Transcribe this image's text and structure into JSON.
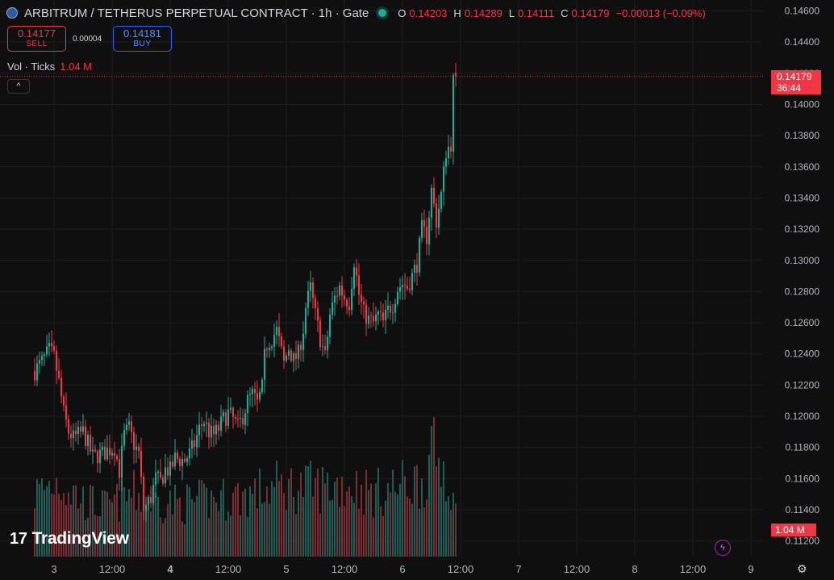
{
  "header": {
    "title": "ARBITRUM / TETHERUS PERPETUAL CONTRACT · 1h · Gate",
    "ohlc": [
      {
        "key": "O",
        "value": "0.14203"
      },
      {
        "key": "H",
        "value": "0.14289"
      },
      {
        "key": "L",
        "value": "0.14111"
      },
      {
        "key": "C",
        "value": "0.14179"
      }
    ],
    "change": "−0.00013 (−0.09%)"
  },
  "trade": {
    "sell_price": "0.14177",
    "sell_label": "SELL",
    "spread": "0.00004",
    "buy_price": "0.14181",
    "buy_label": "BUY"
  },
  "volume_legend": {
    "label": "Vol · Ticks",
    "value": "1.04 M"
  },
  "collapse_glyph": "^",
  "last_price_tag": {
    "price": "0.14179",
    "countdown": "36:44"
  },
  "volume_tag": "1.04 M",
  "branding": {
    "logo_mark": "17",
    "name": "TradingView"
  },
  "settings_icon_glyph": "⚙",
  "flash_icon_glyph": "ϟ",
  "colors": {
    "up": "#22ab94",
    "down": "#f23645",
    "up_vol": "#1f5c55",
    "down_vol": "#7a2c33",
    "grid": "#1e1e1e",
    "background": "#0f0f0f"
  },
  "chart_data": {
    "type": "candlestick",
    "interval": "1h",
    "y_axis": {
      "side": "right",
      "ylim": [
        0.111,
        0.1467
      ],
      "ticks": [
        "0.14600",
        "0.14400",
        "0.14200",
        "0.14000",
        "0.13800",
        "0.13600",
        "0.13400",
        "0.13200",
        "0.13000",
        "0.12800",
        "0.12600",
        "0.12400",
        "0.12200",
        "0.12000",
        "0.11800",
        "0.11600",
        "0.11400",
        "0.11200"
      ]
    },
    "x_axis": {
      "ticks": [
        "3",
        "12:00",
        "4",
        "12:00",
        "5",
        "12:00",
        "6",
        "12:00",
        "7",
        "12:00",
        "8",
        "12:00",
        "9"
      ],
      "bold": [
        "4"
      ],
      "tick_bar_index": [
        8,
        32,
        56,
        80,
        104,
        128,
        152,
        176,
        200,
        224,
        248,
        272,
        296
      ]
    },
    "last_price": 0.14179,
    "volume_max": 1.04,
    "anchors": [
      [
        0,
        0.1229
      ],
      [
        3,
        0.1235
      ],
      [
        6,
        0.1242
      ],
      [
        8,
        0.1238
      ],
      [
        10,
        0.1222
      ],
      [
        12,
        0.1202
      ],
      [
        14,
        0.119
      ],
      [
        16,
        0.1186
      ],
      [
        18,
        0.1188
      ],
      [
        20,
        0.119
      ],
      [
        22,
        0.1182
      ],
      [
        24,
        0.1174
      ],
      [
        28,
        0.1176
      ],
      [
        30,
        0.1178
      ],
      [
        33,
        0.118
      ],
      [
        35,
        0.1165
      ],
      [
        37,
        0.1188
      ],
      [
        39,
        0.1192
      ],
      [
        41,
        0.1182
      ],
      [
        43,
        0.1176
      ],
      [
        45,
        0.114
      ],
      [
        48,
        0.1148
      ],
      [
        50,
        0.116
      ],
      [
        52,
        0.1158
      ],
      [
        54,
        0.1166
      ],
      [
        56,
        0.1165
      ],
      [
        58,
        0.1173
      ],
      [
        60,
        0.1172
      ],
      [
        62,
        0.1172
      ],
      [
        64,
        0.1176
      ],
      [
        66,
        0.1182
      ],
      [
        68,
        0.1192
      ],
      [
        70,
        0.1197
      ],
      [
        72,
        0.119
      ],
      [
        74,
        0.1188
      ],
      [
        76,
        0.1192
      ],
      [
        78,
        0.1198
      ],
      [
        80,
        0.1202
      ],
      [
        82,
        0.1198
      ],
      [
        84,
        0.1193
      ],
      [
        86,
        0.12
      ],
      [
        88,
        0.121
      ],
      [
        90,
        0.1214
      ],
      [
        92,
        0.1208
      ],
      [
        94,
        0.1218
      ],
      [
        95,
        0.1238
      ],
      [
        96,
        0.1246
      ],
      [
        98,
        0.125
      ],
      [
        100,
        0.1255
      ],
      [
        101,
        0.1248
      ],
      [
        103,
        0.1234
      ],
      [
        105,
        0.1244
      ],
      [
        107,
        0.1236
      ],
      [
        109,
        0.124
      ],
      [
        111,
        0.1256
      ],
      [
        112,
        0.127
      ],
      [
        114,
        0.1282
      ],
      [
        116,
        0.1265
      ],
      [
        118,
        0.125
      ],
      [
        120,
        0.1238
      ],
      [
        122,
        0.1265
      ],
      [
        124,
        0.1276
      ],
      [
        126,
        0.1283
      ],
      [
        128,
        0.1276
      ],
      [
        130,
        0.1273
      ],
      [
        132,
        0.13
      ],
      [
        134,
        0.1278
      ],
      [
        136,
        0.1266
      ],
      [
        138,
        0.1262
      ],
      [
        140,
        0.126
      ],
      [
        142,
        0.1265
      ],
      [
        144,
        0.126
      ],
      [
        146,
        0.1268
      ],
      [
        148,
        0.1272
      ],
      [
        150,
        0.1282
      ],
      [
        152,
        0.1285
      ],
      [
        154,
        0.1283
      ],
      [
        156,
        0.129
      ],
      [
        158,
        0.1298
      ],
      [
        160,
        0.132
      ],
      [
        162,
        0.1315
      ],
      [
        164,
        0.1345
      ],
      [
        166,
        0.1325
      ],
      [
        168,
        0.1342
      ],
      [
        170,
        0.137
      ],
      [
        172,
        0.1375
      ],
      [
        173,
        0.1415
      ],
      [
        174,
        0.1418
      ]
    ],
    "volume_anchors": [
      [
        0,
        0.45
      ],
      [
        10,
        0.55
      ],
      [
        20,
        0.4
      ],
      [
        30,
        0.35
      ],
      [
        40,
        0.45
      ],
      [
        50,
        0.4
      ],
      [
        60,
        0.38
      ],
      [
        70,
        0.4
      ],
      [
        80,
        0.42
      ],
      [
        90,
        0.45
      ],
      [
        100,
        0.5
      ],
      [
        110,
        0.5
      ],
      [
        120,
        0.5
      ],
      [
        130,
        0.52
      ],
      [
        140,
        0.45
      ],
      [
        150,
        0.5
      ],
      [
        160,
        0.55
      ],
      [
        165,
        0.7
      ],
      [
        170,
        0.65
      ],
      [
        174,
        0.3
      ]
    ]
  }
}
